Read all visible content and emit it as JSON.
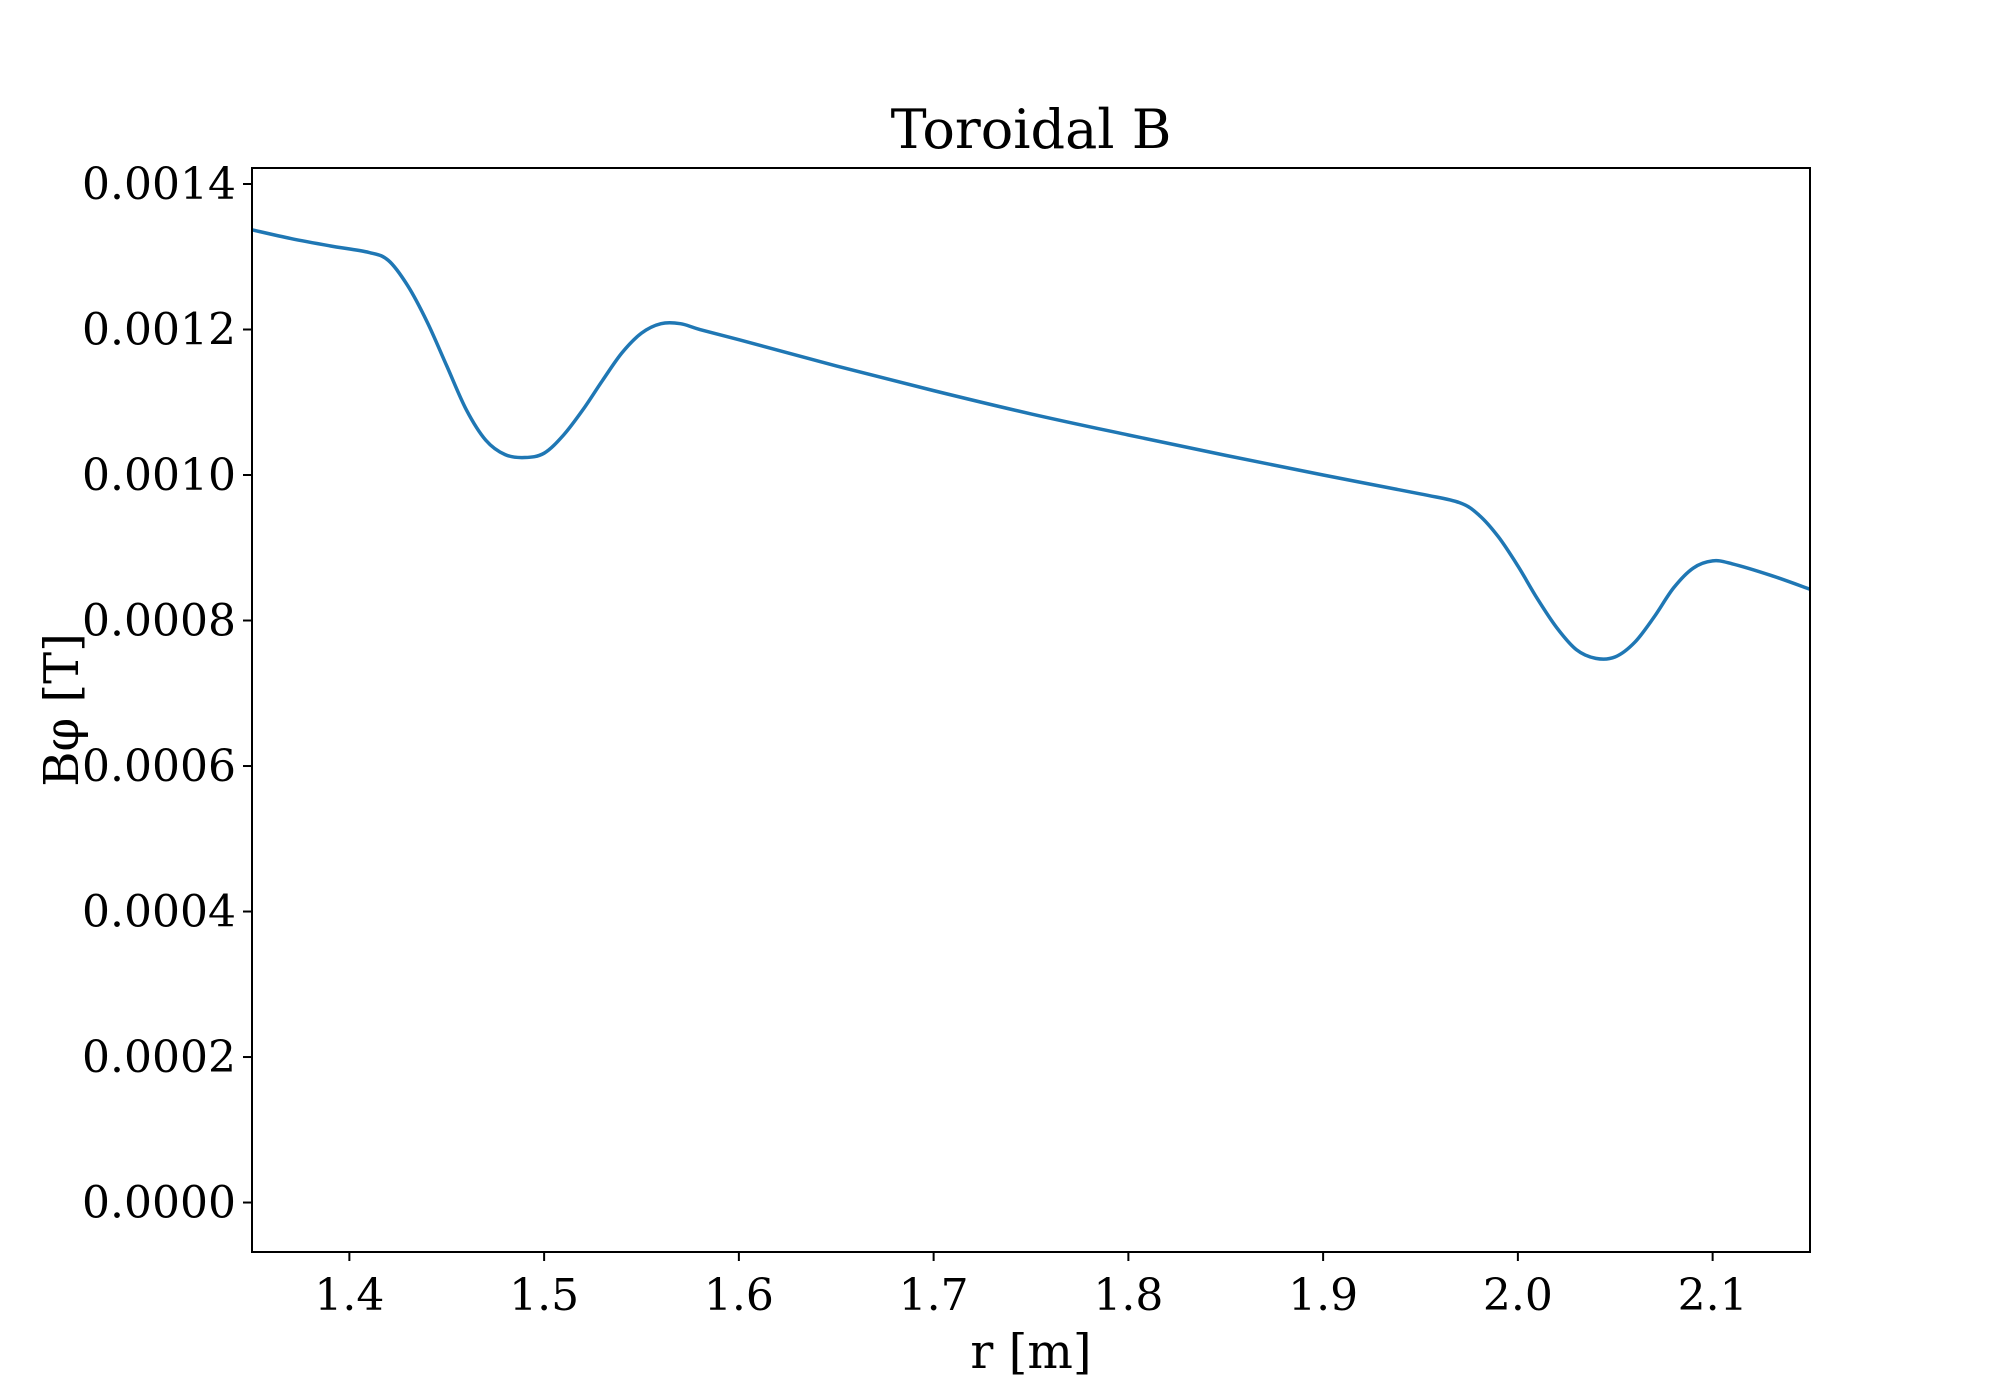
{
  "chart_data": {
    "type": "line",
    "title": "Toroidal B",
    "xlabel": "r [m]",
    "ylabel": "Bφ [T]",
    "xlim": [
      1.35,
      2.15
    ],
    "ylim": [
      -6.8e-05,
      0.001422
    ],
    "xticks": [
      1.4,
      1.5,
      1.6,
      1.7,
      1.8,
      1.9,
      2.0,
      2.1
    ],
    "xtick_labels": [
      "1.4",
      "1.5",
      "1.6",
      "1.7",
      "1.8",
      "1.9",
      "2.0",
      "2.1"
    ],
    "yticks": [
      0.0,
      0.0002,
      0.0004,
      0.0006,
      0.0008,
      0.001,
      0.0012,
      0.0014
    ],
    "ytick_labels": [
      "0.0000",
      "0.0002",
      "0.0004",
      "0.0006",
      "0.0008",
      "0.0010",
      "0.0012",
      "0.0014"
    ],
    "grid": false,
    "line_color": "#1f77b4",
    "series": [
      {
        "x": [
          1.35,
          1.37,
          1.39,
          1.41,
          1.42,
          1.43,
          1.44,
          1.45,
          1.46,
          1.47,
          1.48,
          1.49,
          1.5,
          1.51,
          1.52,
          1.53,
          1.54,
          1.55,
          1.56,
          1.57,
          1.58,
          1.6,
          1.65,
          1.7,
          1.75,
          1.8,
          1.85,
          1.9,
          1.95,
          1.97,
          1.98,
          1.99,
          2.0,
          2.01,
          2.02,
          2.03,
          2.04,
          2.05,
          2.06,
          2.07,
          2.08,
          2.09,
          2.1,
          2.11,
          2.13,
          2.15
        ],
        "y": [
          0.001337,
          0.001325,
          0.001315,
          0.001306,
          0.001295,
          0.00126,
          0.00121,
          0.00115,
          0.00109,
          0.001048,
          0.001028,
          0.001024,
          0.00103,
          0.001055,
          0.00109,
          0.00113,
          0.001168,
          0.001195,
          0.001208,
          0.001208,
          0.0012,
          0.001186,
          0.00115,
          0.001116,
          0.001084,
          0.001055,
          0.001027,
          0.001,
          0.000974,
          0.000962,
          0.000945,
          0.000915,
          0.000875,
          0.00083,
          0.00079,
          0.00076,
          0.000748,
          0.00075,
          0.00077,
          0.000805,
          0.000845,
          0.000872,
          0.000882,
          0.000878,
          0.000862,
          0.000843
        ]
      }
    ]
  }
}
